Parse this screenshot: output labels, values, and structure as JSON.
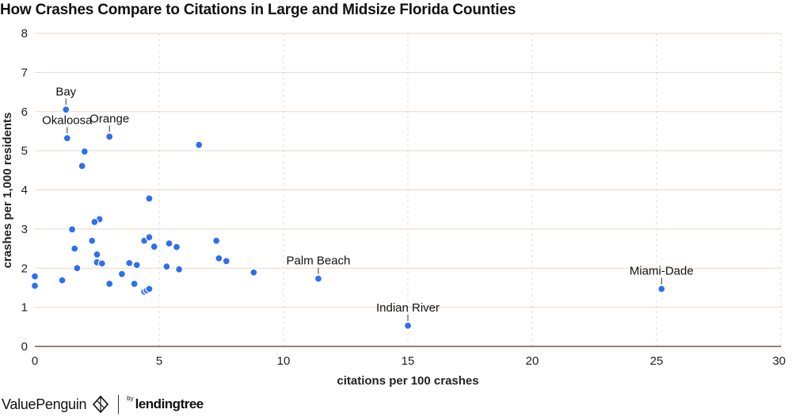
{
  "chart_data": {
    "type": "scatter",
    "title": "How Crashes Compare to Citations in Large and Midsize Florida Counties",
    "xlabel": "citations per 100 crashes",
    "ylabel": "crashes per 1,000 residents",
    "xlim": [
      0,
      30
    ],
    "ylim": [
      0,
      8
    ],
    "x_ticks": [
      0,
      5,
      10,
      15,
      20,
      25,
      30
    ],
    "y_ticks": [
      0,
      1,
      2,
      3,
      4,
      5,
      6,
      7,
      8
    ],
    "grid": {
      "horizontal": "solid",
      "vertical": "dashed"
    },
    "point_color": "#2f6fed",
    "points": [
      {
        "x": 1.25,
        "y": 6.05,
        "label": "Bay"
      },
      {
        "x": 1.3,
        "y": 5.32,
        "label": "Okaloosa"
      },
      {
        "x": 3.0,
        "y": 5.36,
        "label": "Orange"
      },
      {
        "x": 11.4,
        "y": 1.73,
        "label": "Palm Beach"
      },
      {
        "x": 15.0,
        "y": 0.53,
        "label": "Indian River"
      },
      {
        "x": 25.2,
        "y": 1.47,
        "label": "Miami-Dade"
      },
      {
        "x": 2.0,
        "y": 4.98
      },
      {
        "x": 1.9,
        "y": 4.61
      },
      {
        "x": 6.6,
        "y": 5.15
      },
      {
        "x": 4.6,
        "y": 3.78
      },
      {
        "x": 2.6,
        "y": 3.25
      },
      {
        "x": 2.4,
        "y": 3.18
      },
      {
        "x": 1.5,
        "y": 2.99
      },
      {
        "x": 2.3,
        "y": 2.7
      },
      {
        "x": 1.6,
        "y": 2.5
      },
      {
        "x": 2.5,
        "y": 2.35
      },
      {
        "x": 2.5,
        "y": 2.15
      },
      {
        "x": 2.7,
        "y": 2.12
      },
      {
        "x": 1.7,
        "y": 2.0
      },
      {
        "x": 0.0,
        "y": 1.79
      },
      {
        "x": 0.0,
        "y": 1.55
      },
      {
        "x": 1.1,
        "y": 1.69
      },
      {
        "x": 3.0,
        "y": 1.6
      },
      {
        "x": 3.5,
        "y": 1.85
      },
      {
        "x": 3.8,
        "y": 2.13
      },
      {
        "x": 4.1,
        "y": 2.08
      },
      {
        "x": 4.0,
        "y": 1.6
      },
      {
        "x": 4.4,
        "y": 2.7
      },
      {
        "x": 4.6,
        "y": 2.79
      },
      {
        "x": 4.8,
        "y": 2.55
      },
      {
        "x": 4.4,
        "y": 1.4
      },
      {
        "x": 4.5,
        "y": 1.43
      },
      {
        "x": 4.6,
        "y": 1.47
      },
      {
        "x": 5.3,
        "y": 2.04
      },
      {
        "x": 5.4,
        "y": 2.63
      },
      {
        "x": 5.7,
        "y": 2.54
      },
      {
        "x": 5.8,
        "y": 1.97
      },
      {
        "x": 7.3,
        "y": 2.7
      },
      {
        "x": 7.4,
        "y": 2.25
      },
      {
        "x": 7.7,
        "y": 2.18
      },
      {
        "x": 8.8,
        "y": 1.89
      }
    ]
  },
  "footer": {
    "brand": "ValuePenguin",
    "by": "by",
    "partner": "lendingtree"
  }
}
